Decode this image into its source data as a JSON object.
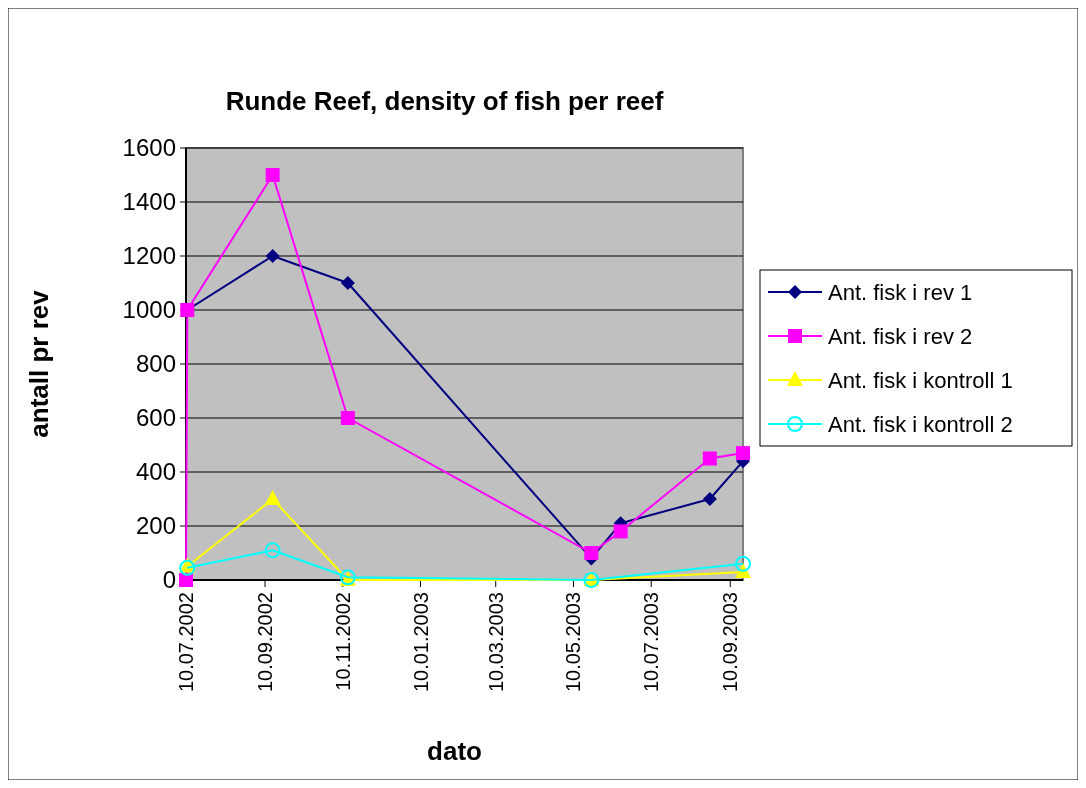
{
  "chart_data": {
    "type": "line",
    "title": "Runde Reef, density of fish per reef",
    "xlabel": "dato",
    "ylabel": "antall pr rev",
    "xlim": [
      "2002-07-10",
      "2003-09-20"
    ],
    "xticks": [
      {
        "value": "2002-07-10",
        "label": "10.07.2002"
      },
      {
        "value": "2002-09-10",
        "label": "10.09.2002"
      },
      {
        "value": "2002-11-10",
        "label": "10.11.2002"
      },
      {
        "value": "2003-01-10",
        "label": "10.01.2003"
      },
      {
        "value": "2003-03-10",
        "label": "10.03.2003"
      },
      {
        "value": "2003-05-10",
        "label": "10.05.2003"
      },
      {
        "value": "2003-07-10",
        "label": "10.07.2003"
      },
      {
        "value": "2003-09-10",
        "label": "10.09.2003"
      }
    ],
    "ylim": [
      0,
      1600
    ],
    "yticks": [
      0,
      200,
      400,
      600,
      800,
      1000,
      1200,
      1400,
      1600
    ],
    "grid": "y",
    "legend": "right",
    "series": [
      {
        "name": "Ant. fisk i rev 1",
        "color": "#000080",
        "marker": "diamond",
        "x": [
          "2002-07-11",
          "2002-09-16",
          "2002-11-14",
          "2003-05-24",
          "2003-06-16",
          "2003-08-25",
          "2003-09-20"
        ],
        "values": [
          1000,
          1200,
          1100,
          80,
          210,
          300,
          440
        ]
      },
      {
        "name": "Ant. fisk i rev 2",
        "color": "#ff00ff",
        "marker": "square",
        "x": [
          "2002-07-10",
          "2002-07-11",
          "2002-09-16",
          "2002-11-14",
          "2003-05-24",
          "2003-06-16",
          "2003-08-25",
          "2003-09-20"
        ],
        "values": [
          0,
          1000,
          1500,
          600,
          100,
          180,
          450,
          470
        ]
      },
      {
        "name": "Ant. fisk i kontroll 1",
        "color": "#ffff00",
        "marker": "triangle",
        "x": [
          "2002-07-11",
          "2002-09-16",
          "2002-11-14",
          "2003-05-24",
          "2003-09-20"
        ],
        "values": [
          50,
          300,
          0,
          0,
          30
        ]
      },
      {
        "name": "Ant. fisk i kontroll 2",
        "color": "#00ffff",
        "marker": "circle",
        "x": [
          "2002-07-11",
          "2002-09-16",
          "2002-11-14",
          "2003-05-24",
          "2003-09-20"
        ],
        "values": [
          45,
          110,
          10,
          0,
          60
        ]
      }
    ]
  }
}
